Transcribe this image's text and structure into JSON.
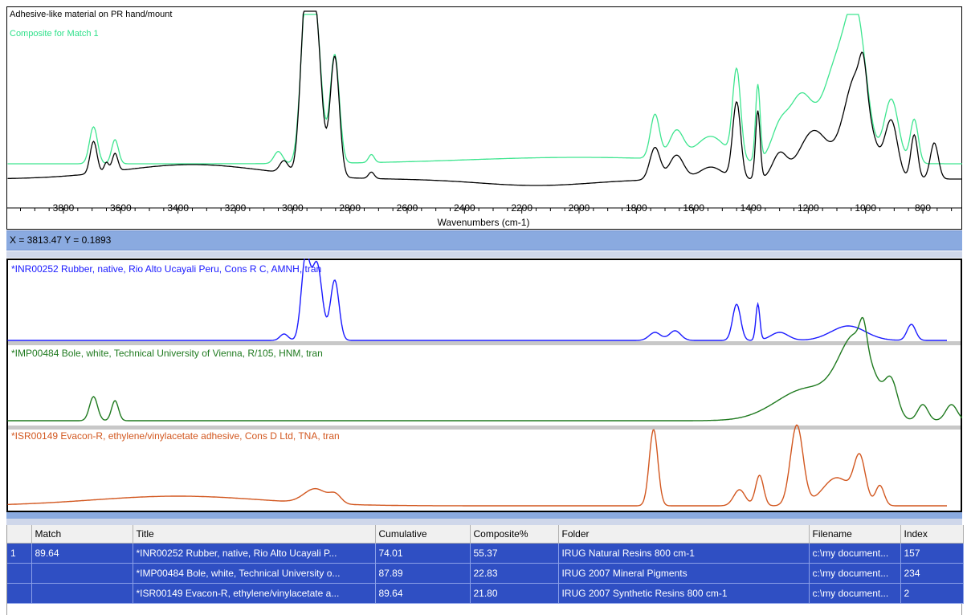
{
  "top_chart": {
    "legend_sample": "Adhesive-like material on PR hand/mount",
    "legend_composite": "Composite for Match 1",
    "xlabel": "Wavenumbers (cm-1)",
    "x_ticks": [
      "3800",
      "3600",
      "3400",
      "3200",
      "3000",
      "2800",
      "2600",
      "2400",
      "2200",
      "2000",
      "1800",
      "1600",
      "1400",
      "1200",
      "1000",
      "800"
    ],
    "colors": {
      "sample": "#000000",
      "composite": "#3ee58f"
    }
  },
  "status": {
    "text": "X = 3813.47   Y = 0.1893"
  },
  "library_spectra": [
    {
      "title": "*INR00252 Rubber, native, Rio Alto Ucayali Peru, Cons R C, AMNH, tran",
      "color": "#1a1aff"
    },
    {
      "title": "*IMP00484 Bole, white, Technical University of Vienna, R/105, HNM, tran",
      "color": "#1f7a1f"
    },
    {
      "title": "*ISR00149 Evacon-R, ethylene/vinylacetate adhesive, Cons D Ltd, TNA, tran",
      "color": "#d2571f"
    }
  ],
  "table": {
    "headers": [
      "",
      "Match",
      "Title",
      "Cumulative",
      "Composite%",
      "Folder",
      "Filename",
      "Index"
    ],
    "rows": [
      [
        "1",
        "89.64",
        "*INR00252 Rubber, native, Rio Alto Ucayali P...",
        "74.01",
        "55.37",
        "IRUG Natural Resins 800 cm-1",
        "c:\\my document...",
        "157"
      ],
      [
        "",
        "",
        "*IMP00484 Bole, white, Technical University o...",
        "87.89",
        "22.83",
        "IRUG 2007 Mineral Pigments",
        "c:\\my document...",
        "234"
      ],
      [
        "",
        "",
        "*ISR00149 Evacon-R, ethylene/vinylacetate a...",
        "89.64",
        "21.80",
        "IRUG 2007 Synthetic Resins 800 cm-1",
        "c:\\my document...",
        "2"
      ]
    ]
  }
}
